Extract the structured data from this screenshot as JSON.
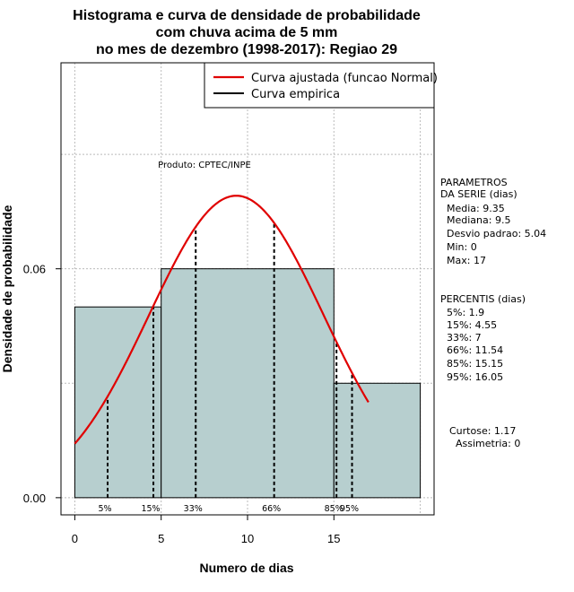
{
  "title": {
    "line1": "Histograma e curva de densidade de probabilidade",
    "line2": "com chuva acima de 5 mm",
    "line3": "no mes de dezembro (1998-2017): Regiao 29"
  },
  "product_label": "Produto: CPTEC/INPE",
  "legend": {
    "fitted": "Curva ajustada (funcao Normal)",
    "empirical": "Curva empirica"
  },
  "parameters": {
    "heading1": "PARAMETROS",
    "heading2": "DA SERIE (dias)",
    "media": "Media: 9.35",
    "mediana": "Mediana: 9.5",
    "desvio": "Desvio padrao: 5.04",
    "min": "Min: 0",
    "max": "Max: 17"
  },
  "percentis": {
    "heading": "PERCENTIS (dias)",
    "items": [
      "5%: 1.9",
      "15%: 4.55",
      "33%: 7",
      "66%: 11.54",
      "85%: 15.15",
      "95%: 16.05"
    ]
  },
  "shape": {
    "curtose": "Curtose: 1.17",
    "assimetria": "Assimetria: 0"
  },
  "colors": {
    "bar_fill": "#b7cfcf",
    "fitted_curve": "#e00000",
    "grid": "#bbbbbb"
  },
  "chart_data": {
    "type": "bar",
    "title": "Histograma e curva de densidade de probabilidade com chuva acima de 5 mm no mes de dezembro (1998-2017): Regiao 29",
    "xlabel": "Numero de dias",
    "ylabel": "Densidade de probabilidade",
    "xlim": [
      -0.8,
      20.8
    ],
    "ylim": [
      -0.0045,
      0.114
    ],
    "x_ticks": [
      0,
      5,
      10,
      15
    ],
    "y_ticks": [
      0.0,
      0.06
    ],
    "y_tick_labels": [
      "0.00",
      "0.06"
    ],
    "grid": true,
    "legend_position": "top-right",
    "bins": [
      {
        "from": 0,
        "to": 5,
        "density": 0.05
      },
      {
        "from": 5,
        "to": 15,
        "density": 0.06
      },
      {
        "from": 15,
        "to": 20,
        "density": 0.03
      }
    ],
    "fitted_normal": {
      "mean": 9.35,
      "sd": 5.04,
      "x_from": 0,
      "x_to": 17
    },
    "percentiles": [
      {
        "label": "5%",
        "x": 1.9
      },
      {
        "label": "15%",
        "x": 4.55
      },
      {
        "label": "33%",
        "x": 7
      },
      {
        "label": "66%",
        "x": 11.54
      },
      {
        "label": "85%",
        "x": 15.15
      },
      {
        "label": "95%",
        "x": 16.05
      }
    ]
  }
}
